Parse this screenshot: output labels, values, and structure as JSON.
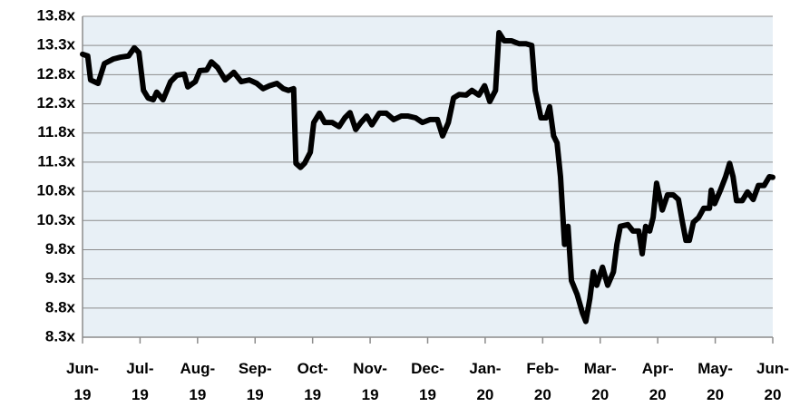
{
  "chart_data": {
    "type": "line",
    "x": [
      0,
      0.09,
      0.14,
      0.27,
      0.38,
      0.54,
      0.66,
      0.8,
      0.9,
      0.98,
      1.06,
      1.14,
      1.23,
      1.29,
      1.4,
      1.53,
      1.64,
      1.77,
      1.83,
      1.96,
      2.04,
      2.16,
      2.24,
      2.35,
      2.48,
      2.63,
      2.76,
      2.9,
      3.03,
      3.14,
      3.25,
      3.38,
      3.49,
      3.58,
      3.67,
      3.71,
      3.79,
      3.86,
      3.96,
      4.02,
      4.12,
      4.21,
      4.34,
      4.46,
      4.56,
      4.65,
      4.75,
      4.84,
      4.94,
      5.03,
      5.16,
      5.28,
      5.41,
      5.54,
      5.66,
      5.79,
      5.91,
      6.04,
      6.17,
      6.26,
      6.36,
      6.45,
      6.55,
      6.67,
      6.77,
      6.89,
      6.99,
      7.08,
      7.18,
      7.24,
      7.33,
      7.46,
      7.59,
      7.71,
      7.81,
      7.87,
      7.97,
      8.06,
      8.12,
      8.19,
      8.25,
      8.31,
      8.38,
      8.44,
      8.5,
      8.6,
      8.69,
      8.75,
      8.82,
      8.88,
      8.94,
      9.04,
      9.13,
      9.23,
      9.29,
      9.35,
      9.48,
      9.57,
      9.67,
      9.73,
      9.79,
      9.86,
      9.92,
      9.98,
      10.08,
      10.17,
      10.27,
      10.36,
      10.43,
      10.49,
      10.55,
      10.62,
      10.71,
      10.8,
      10.9,
      10.93,
      10.99,
      11.09,
      11.18,
      11.25,
      11.31,
      11.37,
      11.47,
      11.56,
      11.66,
      11.75,
      11.85,
      11.94,
      12
    ],
    "series": [
      {
        "color": "#000000",
        "values": [
          13.15,
          13.12,
          12.71,
          12.65,
          12.99,
          13.07,
          13.1,
          13.12,
          13.26,
          13.18,
          12.53,
          12.4,
          12.37,
          12.5,
          12.37,
          12.68,
          12.79,
          12.81,
          12.59,
          12.68,
          12.87,
          12.88,
          13.02,
          12.92,
          12.71,
          12.84,
          12.68,
          12.71,
          12.65,
          12.56,
          12.61,
          12.65,
          12.56,
          12.53,
          12.56,
          11.28,
          11.21,
          11.28,
          11.47,
          11.98,
          12.14,
          11.98,
          11.98,
          11.91,
          12.06,
          12.15,
          11.86,
          11.98,
          12.09,
          11.94,
          12.14,
          12.14,
          12.03,
          12.09,
          12.09,
          12.06,
          11.98,
          12.03,
          12.03,
          11.75,
          11.98,
          12.4,
          12.46,
          12.45,
          12.53,
          12.45,
          12.61,
          12.34,
          12.53,
          13.52,
          13.38,
          13.38,
          13.33,
          13.33,
          13.3,
          12.53,
          12.06,
          12.06,
          12.25,
          11.75,
          11.63,
          11.05,
          9.89,
          10.2,
          9.27,
          9.03,
          8.72,
          8.57,
          8.96,
          9.42,
          9.19,
          9.5,
          9.19,
          9.42,
          9.89,
          10.2,
          10.23,
          10.12,
          10.12,
          9.73,
          10.2,
          10.12,
          10.35,
          10.94,
          10.48,
          10.74,
          10.74,
          10.66,
          10.27,
          9.96,
          9.96,
          10.27,
          10.35,
          10.51,
          10.51,
          10.82,
          10.59,
          10.82,
          11.05,
          11.28,
          11.05,
          10.64,
          10.64,
          10.79,
          10.66,
          10.9,
          10.9,
          11.05,
          11.04
        ]
      }
    ],
    "xlim": [
      0,
      12
    ],
    "xticks": [
      {
        "value": 0,
        "label": "Jun-19"
      },
      {
        "value": 1,
        "label": "Jul-19"
      },
      {
        "value": 2,
        "label": "Aug-19"
      },
      {
        "value": 3,
        "label": "Sep-19"
      },
      {
        "value": 4,
        "label": "Oct-19"
      },
      {
        "value": 5,
        "label": "Nov-19"
      },
      {
        "value": 6,
        "label": "Dec-19"
      },
      {
        "value": 7,
        "label": "Jan-20"
      },
      {
        "value": 8,
        "label": "Feb-20"
      },
      {
        "value": 9,
        "label": "Mar-20"
      },
      {
        "value": 10,
        "label": "Apr-20"
      },
      {
        "value": 11,
        "label": "May-20"
      },
      {
        "value": 12,
        "label": "Jun-20"
      }
    ],
    "ylim": [
      8.3,
      13.8
    ],
    "yticks": [
      {
        "value": 8.3,
        "label": "8.3x"
      },
      {
        "value": 8.8,
        "label": "8.8x"
      },
      {
        "value": 9.3,
        "label": "9.3x"
      },
      {
        "value": 9.8,
        "label": "9.8x"
      },
      {
        "value": 10.3,
        "label": "10.3x"
      },
      {
        "value": 10.8,
        "label": "10.8x"
      },
      {
        "value": 11.3,
        "label": "11.3x"
      },
      {
        "value": 11.8,
        "label": "11.8x"
      },
      {
        "value": 12.3,
        "label": "12.3x"
      },
      {
        "value": 12.8,
        "label": "12.8x"
      },
      {
        "value": 13.3,
        "label": "13.3x"
      },
      {
        "value": 13.8,
        "label": "13.8x"
      }
    ],
    "grid": true
  }
}
